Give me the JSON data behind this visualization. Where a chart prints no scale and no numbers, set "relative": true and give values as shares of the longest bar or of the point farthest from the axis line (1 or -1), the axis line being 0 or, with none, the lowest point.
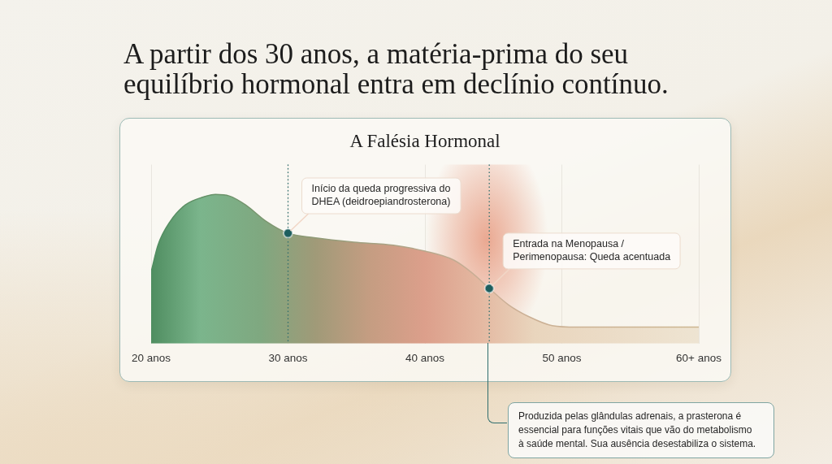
{
  "chart_data": {
    "type": "area",
    "title": "A partir dos 30 anos, a matéria-prima do seu equilíbrio hormonal entra em declínio contínuo.",
    "subtitle": "A Falésia Hormonal",
    "relative": true,
    "xlim": [
      20,
      60
    ],
    "xticks": [
      {
        "value": 20,
        "label": "20 anos"
      },
      {
        "value": 30,
        "label": "30 anos"
      },
      {
        "value": 40,
        "label": "40 anos"
      },
      {
        "value": 50,
        "label": "50 anos"
      },
      {
        "value": 60,
        "label": "60+ anos"
      }
    ],
    "grid": "x",
    "series": [
      {
        "color": "#4f8d60",
        "x": [
          20,
          20.5,
          21.4,
          22.5,
          23.7,
          24.7,
          25.7,
          26.9,
          28.4,
          30,
          31.9,
          34.8,
          37.7,
          40,
          42.1,
          43.5,
          44.7,
          46.1,
          47.6,
          49.3,
          51.1,
          60
        ],
        "values": [
          0.48,
          0.66,
          0.82,
          0.93,
          0.98,
          1,
          0.99,
          0.93,
          0.82,
          0.74,
          0.71,
          0.68,
          0.66,
          0.62,
          0.56,
          0.47,
          0.37,
          0.26,
          0.18,
          0.12,
          0.11,
          0.11
        ]
      },
      {
        "type": "scatter",
        "color": "#1d5e5e",
        "marker": "circle",
        "x": [
          30,
          44.7
        ],
        "values": [
          0.74,
          0.37
        ]
      }
    ],
    "ref_lines": [
      {
        "axis": "x",
        "value": 30,
        "color": "#2f6d6d",
        "line_style": "dotted"
      },
      {
        "axis": "x",
        "value": 44.7,
        "color": "#2f6d6d",
        "line_style": "dotted"
      }
    ],
    "bands": [
      {
        "axis": "x",
        "from": 40,
        "to": 49,
        "color": "#e9a48c"
      }
    ],
    "annotations": [
      {
        "text": "Início da queda progressiva do DHEA (deidroepiandrosterona)",
        "x": 30,
        "y": 0.74
      },
      {
        "text": "Entrada na Menopausa / Perimenopausa: Queda acentuada",
        "x": 44.7,
        "y": 0.37
      },
      "Produzida pelas glândulas adrenais, a prasterona é essencial para funções vitais que vão do metabolismo à saúde mental. Sua ausência desestabiliza o sistema."
    ]
  }
}
